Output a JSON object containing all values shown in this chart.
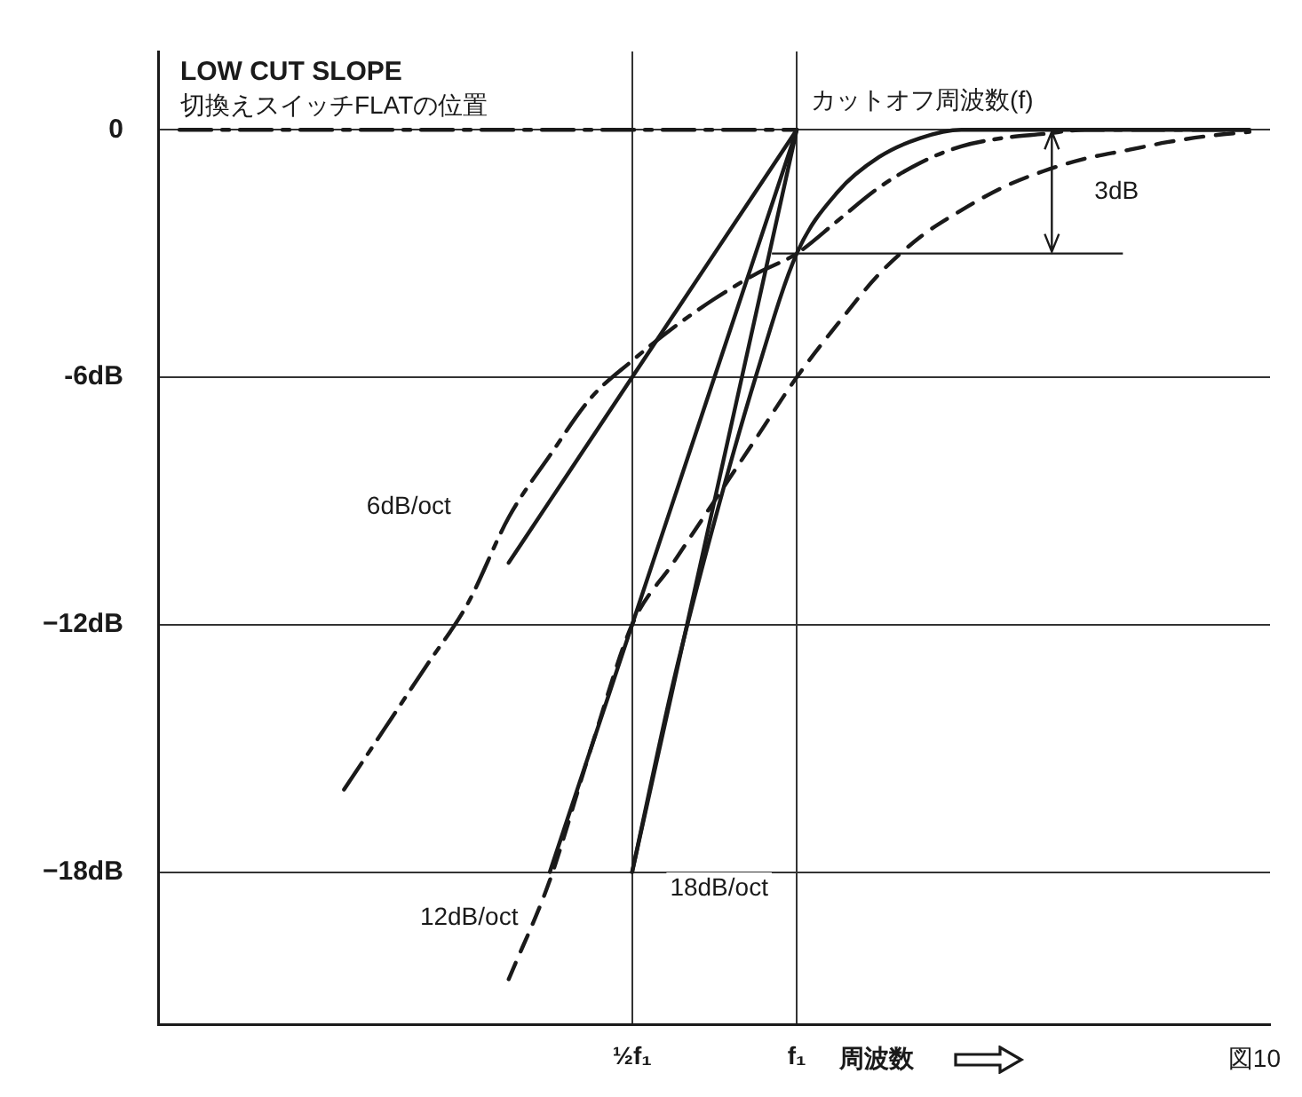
{
  "chart_data": {
    "type": "line",
    "title": "LOW CUT SLOPE",
    "subtitle": "切換えスイッチFLATの位置",
    "xlabel": "周波数",
    "categories": [
      null,
      null,
      null,
      null,
      null,
      null,
      null,
      null,
      null,
      null,
      null,
      "½f₁",
      null,
      null,
      null,
      "f₁",
      null,
      null,
      null,
      null,
      null,
      null,
      null,
      null,
      null,
      null,
      null
    ],
    "ylim": [
      -21.7,
      1.9
    ],
    "yticks": [
      0,
      {
        "value": -6,
        "label": "-6dB"
      },
      {
        "value": -12,
        "label": "−12dB"
      },
      {
        "value": -18,
        "label": "−18dB"
      }
    ],
    "grid": true,
    "legend": false,
    "marker": "none",
    "series": [
      {
        "color": "#1a1a1a",
        "line_style": "dashdot",
        "values": [
          0,
          0,
          0,
          0,
          0,
          0,
          0,
          0,
          0,
          0,
          0,
          0,
          0,
          0,
          0,
          0,
          null,
          null,
          null,
          null,
          null,
          null,
          null,
          null,
          null,
          null,
          null
        ]
      },
      {
        "color": "#1a1a1a",
        "line_style": "solid",
        "values": [
          null,
          null,
          null,
          null,
          null,
          null,
          null,
          null,
          -10.5,
          -9,
          -7.5,
          -6,
          -4.5,
          -3,
          -1.5,
          0,
          null,
          null,
          null,
          null,
          null,
          null,
          null,
          null,
          null,
          null,
          null
        ]
      },
      {
        "color": "#1a1a1a",
        "line_style": "solid",
        "values": [
          null,
          null,
          null,
          null,
          null,
          null,
          null,
          null,
          null,
          -18,
          -15,
          -12,
          -9,
          -6,
          -3,
          0,
          null,
          null,
          null,
          null,
          null,
          null,
          null,
          null,
          null,
          null,
          null
        ]
      },
      {
        "color": "#1a1a1a",
        "line_style": "solid",
        "values": [
          null,
          null,
          null,
          null,
          null,
          null,
          null,
          null,
          null,
          null,
          null,
          -18,
          -13.5,
          -9,
          -4.5,
          0,
          null,
          null,
          null,
          null,
          null,
          null,
          null,
          null,
          null,
          null,
          null
        ]
      },
      {
        "color": "#1a1a1a",
        "line_style": "dashdot",
        "values": [
          null,
          null,
          null,
          null,
          -16,
          -14.5,
          -13,
          -11.5,
          -9.4,
          -7.9,
          -6.5,
          -5.6,
          -4.8,
          -4.1,
          -3.5,
          -3,
          -2.2,
          -1.4,
          -0.8,
          -0.4,
          -0.2,
          -0.1,
          0,
          0,
          0,
          0,
          0
        ]
      },
      {
        "color": "#1a1a1a",
        "line_style": "dashed",
        "values": [
          null,
          null,
          null,
          null,
          null,
          null,
          null,
          null,
          -20.6,
          -18.2,
          -15,
          -12,
          -10.5,
          -9,
          -7.5,
          -6,
          -4.7,
          -3.5,
          -2.6,
          -1.95,
          -1.4,
          -1,
          -0.7,
          -0.5,
          -0.3,
          -0.15,
          -0.05
        ]
      },
      {
        "color": "#1a1a1a",
        "line_style": "solid",
        "values": [
          null,
          null,
          null,
          null,
          null,
          null,
          null,
          null,
          null,
          null,
          null,
          -18,
          -13.4,
          -9.5,
          -6,
          -3,
          -1.5,
          -0.66,
          -0.2,
          0,
          0,
          0,
          0,
          0,
          0,
          0,
          0
        ]
      }
    ],
    "ref_lines": [
      {
        "axis": "y",
        "value": -3,
        "label": "3dB"
      }
    ],
    "annotations": [
      {
        "text": "カットオフ周波数(f)",
        "x": "f₁",
        "y": 0
      },
      "6dB/oct",
      "12dB/oct",
      "18dB/oct",
      "図10"
    ]
  }
}
